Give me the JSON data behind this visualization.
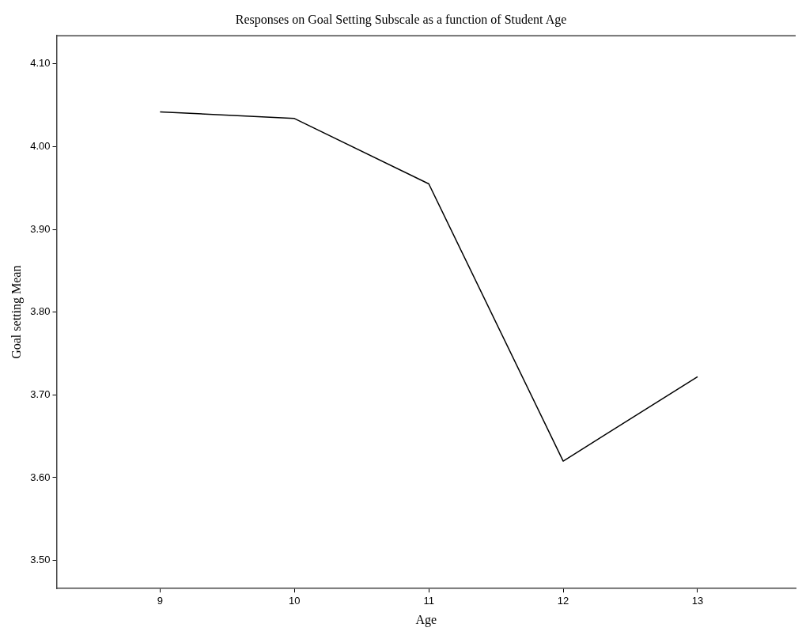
{
  "chart_data": {
    "type": "line",
    "title": "Responses on Goal Setting Subscale as a function of Student Age",
    "xlabel": "Age",
    "ylabel": "Goal setting Mean",
    "x": [
      9,
      10,
      11,
      12,
      13
    ],
    "series": [
      {
        "color": "#000000",
        "values": [
          4.042,
          4.034,
          3.955,
          3.62,
          3.722
        ]
      }
    ],
    "xlim": [
      8.23,
      13.73
    ],
    "xticks": [
      9,
      10,
      11,
      12,
      13
    ],
    "ylim": [
      3.466,
      4.134
    ],
    "yticks": [
      {
        "value": 3.5,
        "label": "3.50"
      },
      {
        "value": 3.6,
        "label": "3.60"
      },
      {
        "value": 3.7,
        "label": "3.70"
      },
      {
        "value": 3.8,
        "label": "3.80"
      },
      {
        "value": 3.9,
        "label": "3.90"
      },
      {
        "value": 4.0,
        "label": "4.00"
      },
      {
        "value": 4.1,
        "label": "4.10"
      }
    ],
    "grid": false,
    "legend": false,
    "marker": "none",
    "line_style": "solid"
  }
}
